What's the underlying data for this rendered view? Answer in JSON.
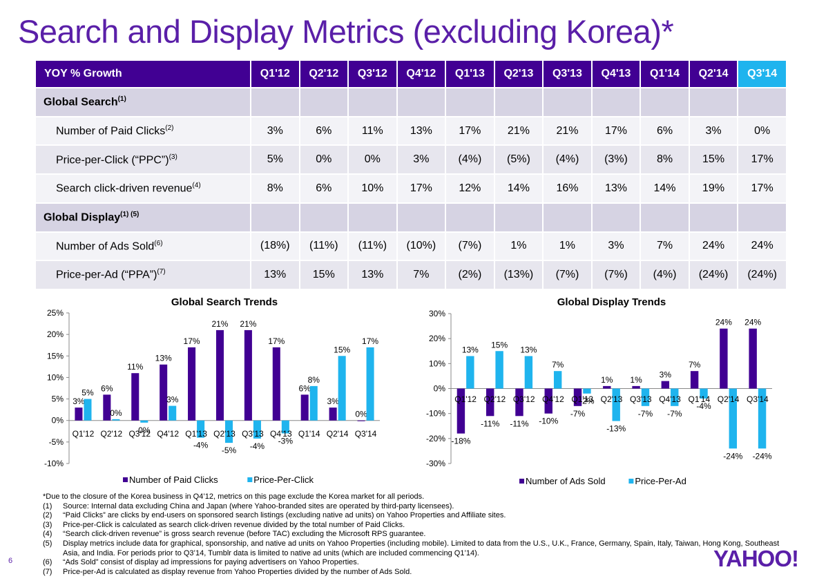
{
  "title": "Search and Display Metrics (excluding Korea)*",
  "table": {
    "header_label": "YOY % Growth",
    "quarters": [
      "Q1'12",
      "Q2'12",
      "Q3'12",
      "Q4'12",
      "Q1'13",
      "Q2'13",
      "Q3'13",
      "Q4'13",
      "Q1'14",
      "Q2'14",
      "Q3'14"
    ],
    "sections": [
      {
        "label": "Global Search",
        "sup": "(1)",
        "rows": [
          {
            "label": "Number of Paid Clicks",
            "sup": "(2)",
            "values": [
              "3%",
              "6%",
              "11%",
              "13%",
              "17%",
              "21%",
              "21%",
              "17%",
              "6%",
              "3%",
              "0%"
            ]
          },
          {
            "label": "Price-per-Click (“PPC”)",
            "sup": "(3)",
            "values": [
              "5%",
              "0%",
              "0%",
              "3%",
              "(4%)",
              "(5%)",
              "(4%)",
              "(3%)",
              "8%",
              "15%",
              "17%"
            ]
          },
          {
            "label": "Search click-driven revenue",
            "sup": "(4)",
            "values": [
              "8%",
              "6%",
              "10%",
              "17%",
              "12%",
              "14%",
              "16%",
              "13%",
              "14%",
              "19%",
              "17%"
            ]
          }
        ]
      },
      {
        "label": "Global Display",
        "sup": "(1) (5)",
        "rows": [
          {
            "label": "Number of Ads Sold",
            "sup": "(6)",
            "values": [
              "(18%)",
              "(11%)",
              "(11%)",
              "(10%)",
              "(7%)",
              "1%",
              "1%",
              "3%",
              "7%",
              "24%",
              "24%"
            ]
          },
          {
            "label": "Price-per-Ad (“PPA”)",
            "sup": "(7)",
            "values": [
              "13%",
              "15%",
              "13%",
              "7%",
              "(2%)",
              "(13%)",
              "(7%)",
              "(7%)",
              "(4%)",
              "(24%)",
              "(24%)"
            ]
          }
        ]
      }
    ]
  },
  "chart_data": [
    {
      "type": "bar",
      "title": "Global Search Trends",
      "categories": [
        "Q1'12",
        "Q2'12",
        "Q3'12",
        "Q4'12",
        "Q1'13",
        "Q2'13",
        "Q3'13",
        "Q4'13",
        "Q1'14",
        "Q2'14",
        "Q3'14"
      ],
      "series": [
        {
          "name": "Number of Paid Clicks",
          "color": "#410093",
          "values": [
            3,
            6,
            11,
            13,
            17,
            21,
            21,
            17,
            6,
            3,
            0
          ],
          "labels": [
            "3%",
            "6%",
            "11%",
            "13%",
            "17%",
            "21%",
            "21%",
            "17%",
            "6%",
            "3%",
            "0%"
          ]
        },
        {
          "name": "Price-Per-Click",
          "color": "#1fb4ee",
          "values": [
            5,
            0.3,
            -0.5,
            3.4,
            -4,
            -5.2,
            -4.2,
            -3,
            8,
            15,
            17
          ],
          "labels": [
            "5%",
            "0%",
            "0%",
            "3%",
            "-4%",
            "-5%",
            "-4%",
            "-3%",
            "8%",
            "15%",
            "17%"
          ]
        }
      ],
      "yticks": [
        "25%",
        "20%",
        "15%",
        "10%",
        "5%",
        "0%",
        "-5%",
        "-10%"
      ],
      "ylim": [
        -10,
        25
      ],
      "legend": "bottom"
    },
    {
      "type": "bar",
      "title": "Global Display Trends",
      "categories": [
        "Q1'12",
        "Q2'12",
        "Q3'12",
        "Q4'12",
        "Q1'13",
        "Q2'13",
        "Q3'13",
        "Q4'13",
        "Q1'14",
        "Q2'14",
        "Q3'14"
      ],
      "series": [
        {
          "name": "Number of Ads Sold",
          "color": "#410093",
          "values": [
            -18,
            -11,
            -11,
            -10,
            -7,
            1,
            1,
            3,
            7,
            24,
            24
          ],
          "labels": [
            "-18%",
            "-11%",
            "-11%",
            "-10%",
            "-7%",
            "1%",
            "1%",
            "3%",
            "7%",
            "24%",
            "24%"
          ]
        },
        {
          "name": "Price-Per-Ad",
          "color": "#1fb4ee",
          "values": [
            13,
            15,
            13,
            7,
            -2,
            -13,
            -7,
            -7,
            -4,
            -24,
            -24
          ],
          "labels": [
            "13%",
            "15%",
            "13%",
            "7%",
            "-2%",
            "-13%",
            "-7%",
            "-7%",
            "-4%",
            "-24%",
            "-24%"
          ]
        }
      ],
      "yticks": [
        "30%",
        "20%",
        "10%",
        "0%",
        "-10%",
        "-20%",
        "-30%"
      ],
      "ylim": [
        -30,
        30
      ],
      "legend": "bottom"
    }
  ],
  "footnotes": {
    "intro": "*Due to the closure of the Korea business in Q4’12, metrics on this page exclude the Korea market for all periods.",
    "items": [
      {
        "num": "(1)",
        "text": "Source: Internal data excluding China and Japan (where Yahoo-branded sites are operated by third-party licensees)."
      },
      {
        "num": "(2)",
        "text": "“Paid Clicks” are clicks by end-users on sponsored search listings  (excluding native ad units) on Yahoo Properties and Affiliate sites."
      },
      {
        "num": "(3)",
        "text": "Price-per-Click is calculated as search click-driven revenue divided by the total number of Paid Clicks."
      },
      {
        "num": "(4)",
        "text": "“Search click-driven revenue” is gross search revenue (before TAC) excluding the Microsoft RPS guarantee."
      },
      {
        "num": "(5)",
        "text": "Display metrics include data for graphical, sponsorship, and native ad units on Yahoo Properties (including mobile). Limited to data from the U.S., U.K., France, Germany, Spain, Italy, Taiwan, Hong Kong,  Southeast Asia, and India. For periods prior to Q3’14, Tumblr data is limited to native ad units (which are included commencing Q1’14)."
      },
      {
        "num": "(6)",
        "text": "“Ads Sold” consist of display ad impressions for paying advertisers on Yahoo Properties."
      },
      {
        "num": "(7)",
        "text": "Price-per-Ad is calculated as display revenue from Yahoo Properties divided by the number of Ads Sold."
      }
    ]
  },
  "page_number": "6",
  "logo_text": "YAHOO!"
}
